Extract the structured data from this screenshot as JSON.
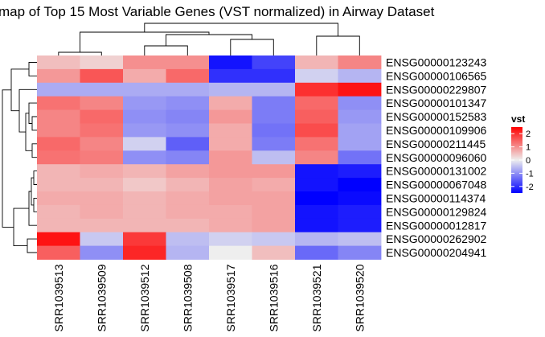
{
  "chart_data": {
    "type": "heatmap",
    "title": "map of Top 15 Most Variable Genes (VST normalized) in Airway Dataset",
    "columns": [
      "SRR1039513",
      "SRR1039509",
      "SRR1039512",
      "SRR1039508",
      "SRR1039517",
      "SRR1039516",
      "SRR1039521",
      "SRR1039520"
    ],
    "rows": [
      "ENSG00000123243",
      "ENSG00000106565",
      "ENSG00000229807",
      "ENSG00000101347",
      "ENSG00000152583",
      "ENSG00000109906",
      "ENSG00000211445",
      "ENSG00000096060",
      "ENSG00000131002",
      "ENSG00000067048",
      "ENSG00000114374",
      "ENSG00000129824",
      "ENSG00000012817",
      "ENSG00000262902",
      "ENSG00000204941"
    ],
    "values": [
      [
        0.5,
        0.3,
        1.0,
        1.0,
        -2.3,
        -1.8,
        0.6,
        1.1
      ],
      [
        0.9,
        1.6,
        0.7,
        1.4,
        -2.0,
        -2.0,
        -0.3,
        -0.6
      ],
      [
        -0.7,
        -0.7,
        -0.7,
        -0.7,
        -0.6,
        -0.6,
        2.0,
        2.3
      ],
      [
        1.3,
        1.1,
        -0.9,
        -1.0,
        0.7,
        -1.2,
        1.4,
        -1.0
      ],
      [
        1.1,
        1.4,
        -1.0,
        -1.1,
        0.9,
        -1.2,
        1.5,
        -0.9
      ],
      [
        1.1,
        1.3,
        -0.9,
        -1.0,
        0.7,
        -1.3,
        1.7,
        -0.8
      ],
      [
        1.4,
        1.1,
        -0.3,
        -1.5,
        0.7,
        -1.2,
        1.3,
        -0.8
      ],
      [
        1.3,
        1.2,
        -1.0,
        -1.1,
        0.9,
        -0.5,
        1.1,
        -1.3
      ],
      [
        0.6,
        0.7,
        0.6,
        0.8,
        0.9,
        0.9,
        -2.3,
        -2.2
      ],
      [
        0.6,
        0.6,
        0.4,
        0.6,
        0.8,
        0.7,
        -2.3,
        -2.5
      ],
      [
        0.7,
        0.7,
        0.6,
        0.7,
        0.8,
        0.8,
        -2.5,
        -2.4
      ],
      [
        0.6,
        0.7,
        0.6,
        0.7,
        0.7,
        0.8,
        -2.3,
        -2.2
      ],
      [
        0.6,
        0.6,
        0.6,
        0.6,
        0.7,
        0.8,
        -2.3,
        -2.2
      ],
      [
        2.3,
        -0.4,
        1.9,
        -0.5,
        -0.3,
        -0.4,
        -0.6,
        -0.5
      ],
      [
        1.5,
        -1.0,
        2.1,
        -0.6,
        0.0,
        0.5,
        -1.4,
        -1.1
      ]
    ],
    "legend": {
      "title": "vst",
      "ticks": [
        2,
        1,
        0,
        -1,
        -2
      ],
      "range": [
        -2.5,
        2.5
      ],
      "colors": {
        "low": "#0000FF",
        "mid": "#EEEEEE",
        "high": "#FF0000"
      }
    }
  }
}
